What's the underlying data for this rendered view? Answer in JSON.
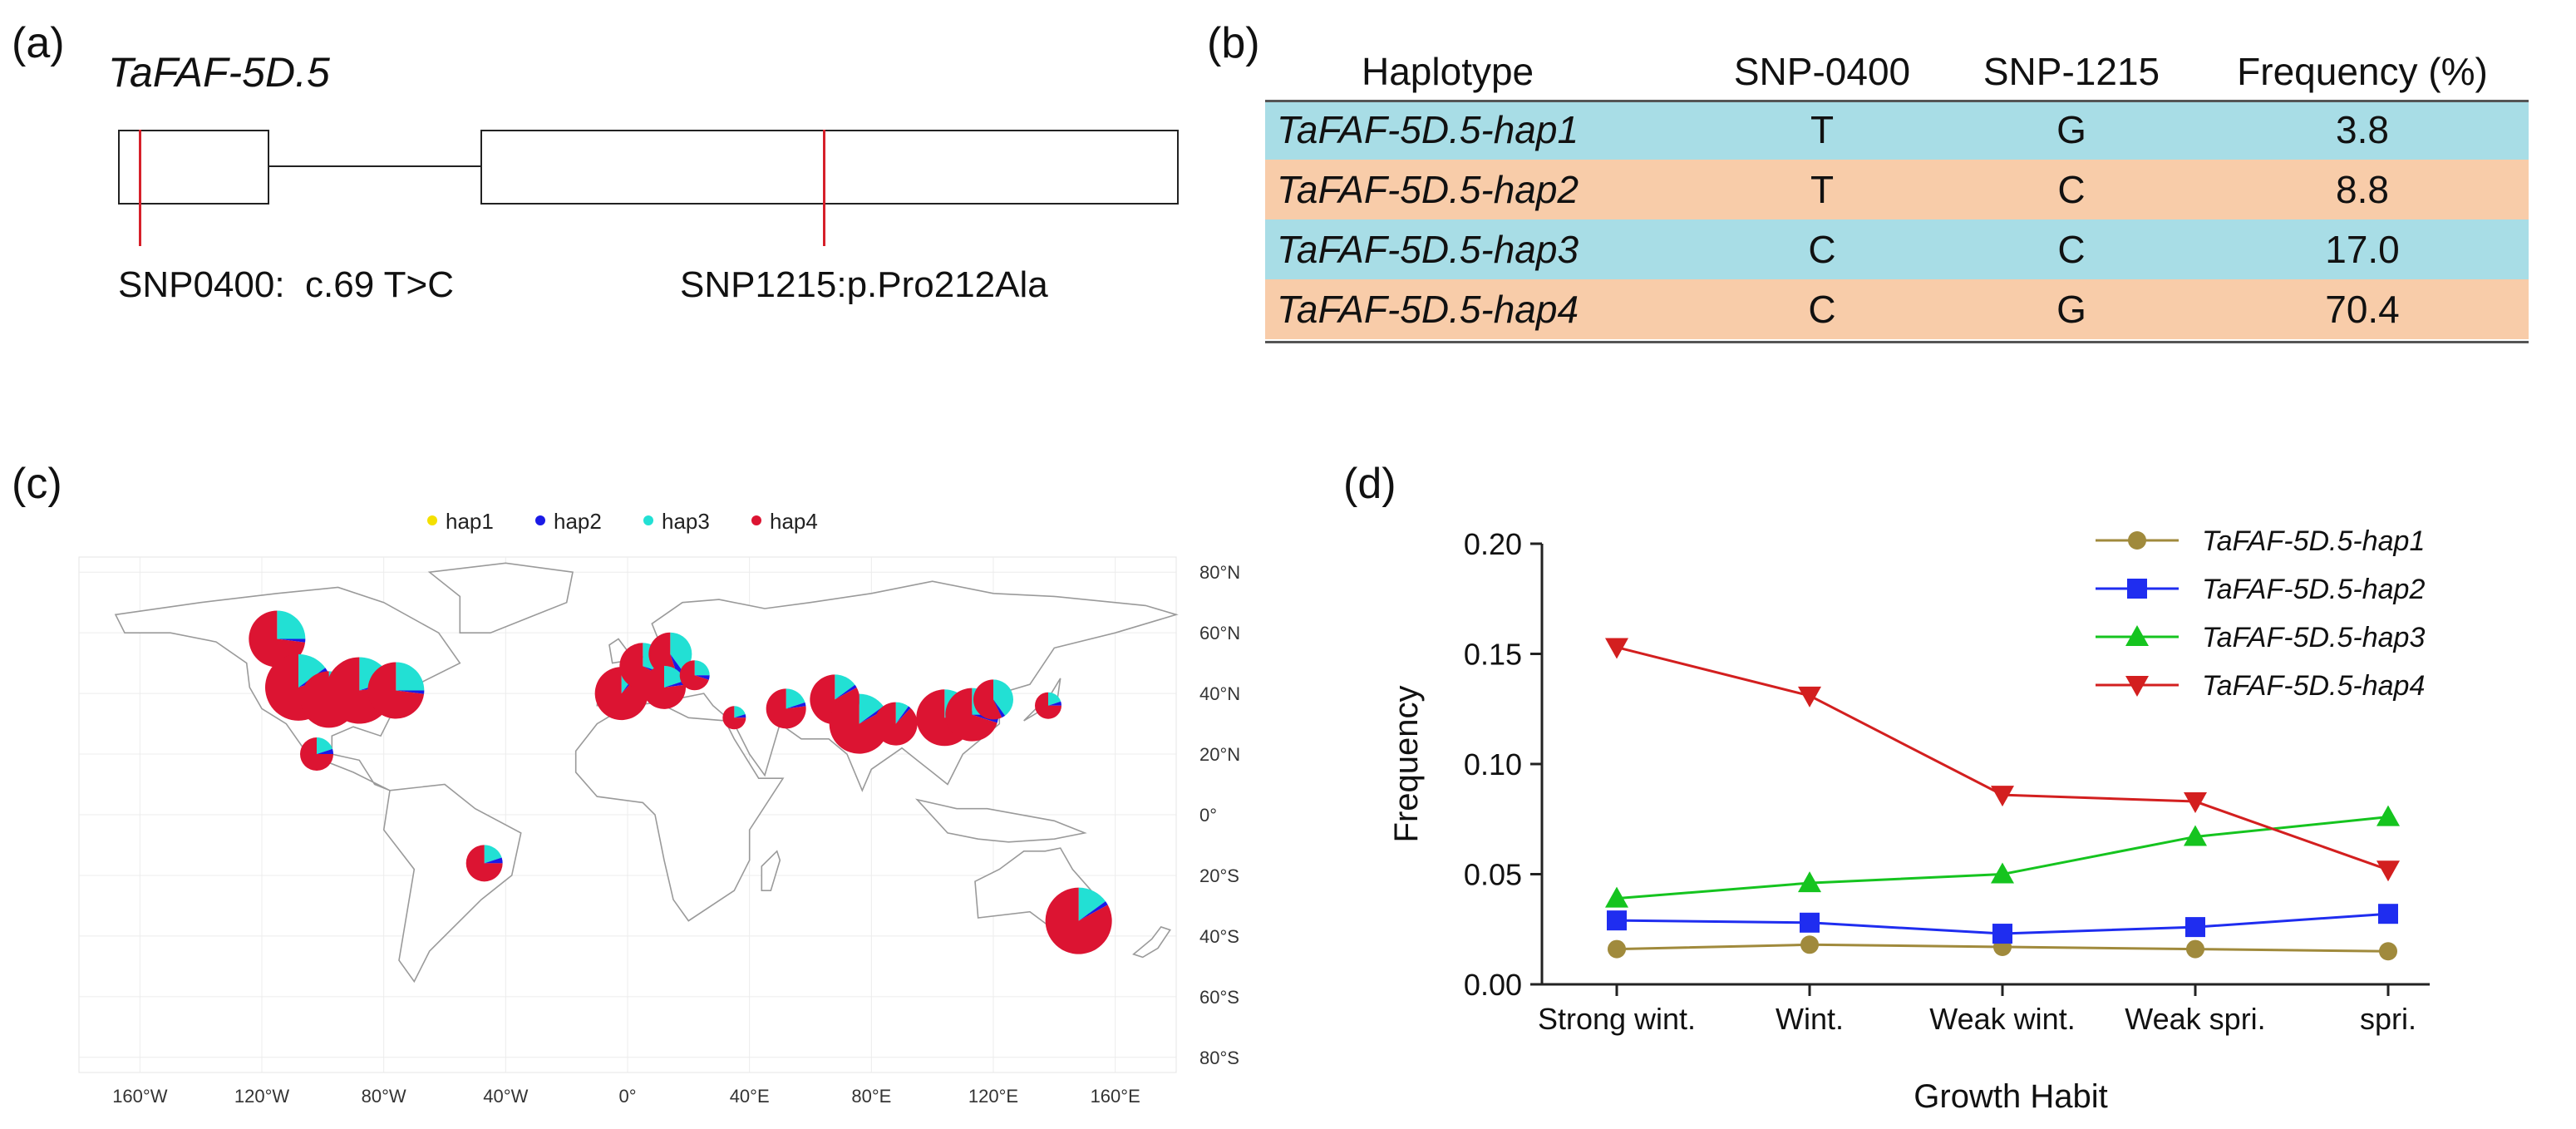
{
  "panel_a": {
    "letter": "(a)",
    "gene": "TaFAF-5D.5",
    "snp1_label": "SNP0400:  c.69 T>C",
    "snp2_label": "SNP1215:p.Pro212Ala"
  },
  "panel_b": {
    "letter": "(b)",
    "headers": [
      "Haplotype",
      "SNP-0400",
      "SNP-1215",
      "Frequency (%)"
    ],
    "rows": [
      {
        "haplotype": "TaFAF-5D.5-hap1",
        "snp0400": "T",
        "snp1215": "G",
        "frequency": "3.8"
      },
      {
        "haplotype": "TaFAF-5D.5-hap2",
        "snp0400": "T",
        "snp1215": "C",
        "frequency": "8.8"
      },
      {
        "haplotype": "TaFAF-5D.5-hap3",
        "snp0400": "C",
        "snp1215": "C",
        "frequency": "17.0"
      },
      {
        "haplotype": "TaFAF-5D.5-hap4",
        "snp0400": "C",
        "snp1215": "G",
        "frequency": "70.4"
      }
    ],
    "colors": {
      "blue_row": "#a8dde6",
      "peach_row": "#f8cca9"
    }
  },
  "panel_c": {
    "letter": "(c)",
    "legend": [
      {
        "label": "hap1",
        "color": "#f4e000"
      },
      {
        "label": "hap2",
        "color": "#1a1ae6"
      },
      {
        "label": "hap3",
        "color": "#22e0d4"
      },
      {
        "label": "hap4",
        "color": "#dc1432"
      }
    ],
    "lat_labels": [
      "80°N",
      "60°N",
      "40°N",
      "20°N",
      "0°",
      "20°S",
      "40°S",
      "60°S",
      "80°S"
    ],
    "lon_labels": [
      "160°W",
      "120°W",
      "80°W",
      "40°W",
      "0°",
      "40°E",
      "80°E",
      "120°E",
      "160°E"
    ],
    "pies": [
      {
        "lon": -115,
        "lat": 58,
        "size": 34,
        "hap3": 0.25,
        "hap2": 0.02
      },
      {
        "lon": -108,
        "lat": 42,
        "size": 40,
        "hap3": 0.15,
        "hap2": 0.05
      },
      {
        "lon": -98,
        "lat": 38,
        "size": 34,
        "hap3": 0.2,
        "hap2": 0.05
      },
      {
        "lon": -88,
        "lat": 41,
        "size": 40,
        "hap3": 0.2,
        "hap2": 0.03
      },
      {
        "lon": -76,
        "lat": 41,
        "size": 34,
        "hap3": 0.25,
        "hap2": 0.02
      },
      {
        "lon": -102,
        "lat": 20,
        "size": 20,
        "hap3": 0.2,
        "hap2": 0.05
      },
      {
        "lon": -47,
        "lat": -16,
        "size": 22,
        "hap3": 0.2,
        "hap2": 0.05
      },
      {
        "lon": -2,
        "lat": 40,
        "size": 32,
        "hap3": 0.1,
        "hap2": 0.02
      },
      {
        "lon": 5,
        "lat": 49,
        "size": 28,
        "hap3": 0.3,
        "hap2": 0.03
      },
      {
        "lon": 14,
        "lat": 53,
        "size": 26,
        "hap3": 0.4,
        "hap2": 0.05
      },
      {
        "lon": 12,
        "lat": 42,
        "size": 26,
        "hap3": 0.2,
        "hap2": 0.03
      },
      {
        "lon": 22,
        "lat": 46,
        "size": 18,
        "hap3": 0.25,
        "hap2": 0.05
      },
      {
        "lon": 35,
        "lat": 32,
        "size": 14,
        "hap3": 0.2,
        "hap2": 0.05
      },
      {
        "lon": 52,
        "lat": 35,
        "size": 24,
        "hap3": 0.2,
        "hap2": 0.03
      },
      {
        "lon": 68,
        "lat": 38,
        "size": 30,
        "hap3": 0.15,
        "hap2": 0.02
      },
      {
        "lon": 76,
        "lat": 30,
        "size": 36,
        "hap3": 0.15,
        "hap2": 0.02
      },
      {
        "lon": 88,
        "lat": 30,
        "size": 26,
        "hap3": 0.1,
        "hap2": 0.02
      },
      {
        "lon": 104,
        "lat": 32,
        "size": 34,
        "hap3": 0.2,
        "hap2": 0.05
      },
      {
        "lon": 113,
        "lat": 33,
        "size": 32,
        "hap3": 0.25,
        "hap2": 0.05
      },
      {
        "lon": 120,
        "lat": 38,
        "size": 24,
        "hap3": 0.4,
        "hap2": 0.03
      },
      {
        "lon": 138,
        "lat": 36,
        "size": 16,
        "hap3": 0.2,
        "hap2": 0.05
      },
      {
        "lon": 148,
        "lat": -35,
        "size": 40,
        "hap3": 0.15,
        "hap2": 0.02
      }
    ]
  },
  "panel_d": {
    "letter": "(d)",
    "chart_data": {
      "type": "line",
      "categories": [
        "Strong wint.",
        "Wint.",
        "Weak wint.",
        "Weak spri.",
        "spri."
      ],
      "series": [
        {
          "name": "TaFAF-5D.5-hap1",
          "color": "#a08a3c",
          "marker": "circle",
          "values": [
            0.016,
            0.018,
            0.017,
            0.016,
            0.015
          ]
        },
        {
          "name": "TaFAF-5D.5-hap2",
          "color": "#1f2df0",
          "marker": "square",
          "values": [
            0.029,
            0.028,
            0.023,
            0.026,
            0.032
          ]
        },
        {
          "name": "TaFAF-5D.5-hap3",
          "color": "#15c41f",
          "marker": "triangle-up",
          "values": [
            0.039,
            0.046,
            0.05,
            0.067,
            0.076
          ]
        },
        {
          "name": "TaFAF-5D.5-hap4",
          "color": "#d31f1f",
          "marker": "triangle-down",
          "values": [
            0.153,
            0.131,
            0.086,
            0.083,
            0.052
          ]
        }
      ],
      "xlabel": "Growth Habit",
      "ylabel": "Frequency",
      "ylim": [
        0,
        0.2
      ],
      "yticks": [
        "0.00",
        "0.05",
        "0.10",
        "0.15",
        "0.20"
      ],
      "legend_position": "top-right"
    }
  }
}
